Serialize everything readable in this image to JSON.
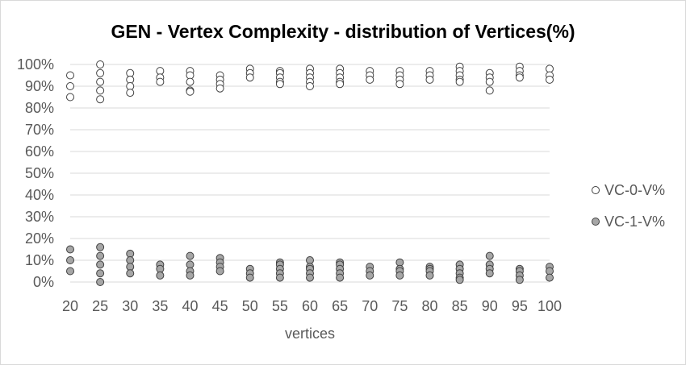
{
  "chart_data": {
    "type": "scatter",
    "title": "GEN - Vertex Complexity - distribution of Vertices(%)",
    "xlabel": "vertices",
    "ylabel": "",
    "x_ticks": [
      20,
      25,
      30,
      35,
      40,
      45,
      50,
      55,
      60,
      65,
      70,
      75,
      80,
      85,
      90,
      95,
      100
    ],
    "y_ticks": [
      "0%",
      "10%",
      "20%",
      "30%",
      "40%",
      "50%",
      "60%",
      "70%",
      "80%",
      "90%",
      "100%"
    ],
    "xlim": [
      20,
      100
    ],
    "ylim": [
      0,
      100
    ],
    "grid": "horizontal",
    "legend_position": "right",
    "series": [
      {
        "name": "VC-0-V%",
        "color": "#ffffff",
        "points": [
          [
            20,
            95
          ],
          [
            20,
            90
          ],
          [
            20,
            85
          ],
          [
            25,
            100
          ],
          [
            25,
            96
          ],
          [
            25,
            92
          ],
          [
            25,
            88
          ],
          [
            25,
            84
          ],
          [
            30,
            96
          ],
          [
            30,
            93
          ],
          [
            30,
            90
          ],
          [
            30,
            87
          ],
          [
            35,
            97
          ],
          [
            35,
            94
          ],
          [
            35,
            92
          ],
          [
            40,
            97
          ],
          [
            40,
            95
          ],
          [
            40,
            92
          ],
          [
            40,
            88
          ],
          [
            40,
            87.5
          ],
          [
            45,
            95
          ],
          [
            45,
            93
          ],
          [
            45,
            91
          ],
          [
            45,
            89
          ],
          [
            50,
            98
          ],
          [
            50,
            96
          ],
          [
            50,
            94
          ],
          [
            55,
            97
          ],
          [
            55,
            96
          ],
          [
            55,
            94
          ],
          [
            55,
            92
          ],
          [
            55,
            91
          ],
          [
            60,
            98
          ],
          [
            60,
            96
          ],
          [
            60,
            94
          ],
          [
            60,
            92
          ],
          [
            60,
            90
          ],
          [
            65,
            98
          ],
          [
            65,
            96
          ],
          [
            65,
            94
          ],
          [
            65,
            92
          ],
          [
            65,
            91
          ],
          [
            70,
            97
          ],
          [
            70,
            95
          ],
          [
            70,
            93
          ],
          [
            75,
            97
          ],
          [
            75,
            95
          ],
          [
            75,
            93
          ],
          [
            75,
            91
          ],
          [
            80,
            97
          ],
          [
            80,
            95
          ],
          [
            80,
            93
          ],
          [
            85,
            99
          ],
          [
            85,
            97
          ],
          [
            85,
            95
          ],
          [
            85,
            93
          ],
          [
            85,
            92
          ],
          [
            90,
            96
          ],
          [
            90,
            94
          ],
          [
            90,
            92
          ],
          [
            90,
            88
          ],
          [
            95,
            99
          ],
          [
            95,
            97
          ],
          [
            95,
            95
          ],
          [
            95,
            94
          ],
          [
            100,
            98
          ],
          [
            100,
            95
          ],
          [
            100,
            93
          ]
        ]
      },
      {
        "name": "VC-1-V%",
        "color": "#a6a6a6",
        "points": [
          [
            20,
            15
          ],
          [
            20,
            10
          ],
          [
            20,
            5
          ],
          [
            25,
            16
          ],
          [
            25,
            12
          ],
          [
            25,
            8
          ],
          [
            25,
            4
          ],
          [
            25,
            0
          ],
          [
            30,
            13
          ],
          [
            30,
            10
          ],
          [
            30,
            7
          ],
          [
            30,
            4
          ],
          [
            35,
            8
          ],
          [
            35,
            6
          ],
          [
            35,
            3
          ],
          [
            40,
            12
          ],
          [
            40,
            8
          ],
          [
            40,
            5
          ],
          [
            40,
            3
          ],
          [
            45,
            11
          ],
          [
            45,
            9
          ],
          [
            45,
            7
          ],
          [
            45,
            5
          ],
          [
            50,
            6
          ],
          [
            50,
            4
          ],
          [
            50,
            2
          ],
          [
            55,
            9
          ],
          [
            55,
            8
          ],
          [
            55,
            6
          ],
          [
            55,
            4
          ],
          [
            55,
            2
          ],
          [
            60,
            10
          ],
          [
            60,
            7
          ],
          [
            60,
            6
          ],
          [
            60,
            4
          ],
          [
            60,
            2
          ],
          [
            65,
            9
          ],
          [
            65,
            8
          ],
          [
            65,
            6
          ],
          [
            65,
            4
          ],
          [
            65,
            2
          ],
          [
            70,
            7
          ],
          [
            70,
            5
          ],
          [
            70,
            3
          ],
          [
            75,
            9
          ],
          [
            75,
            6
          ],
          [
            75,
            5
          ],
          [
            75,
            3
          ],
          [
            80,
            7
          ],
          [
            80,
            6
          ],
          [
            80,
            5
          ],
          [
            80,
            3
          ],
          [
            85,
            8
          ],
          [
            85,
            6
          ],
          [
            85,
            4
          ],
          [
            85,
            2
          ],
          [
            85,
            1
          ],
          [
            90,
            12
          ],
          [
            90,
            8
          ],
          [
            90,
            6
          ],
          [
            90,
            4
          ],
          [
            95,
            6
          ],
          [
            95,
            5
          ],
          [
            95,
            3
          ],
          [
            95,
            1
          ],
          [
            100,
            7
          ],
          [
            100,
            5
          ],
          [
            100,
            2
          ]
        ]
      }
    ]
  }
}
